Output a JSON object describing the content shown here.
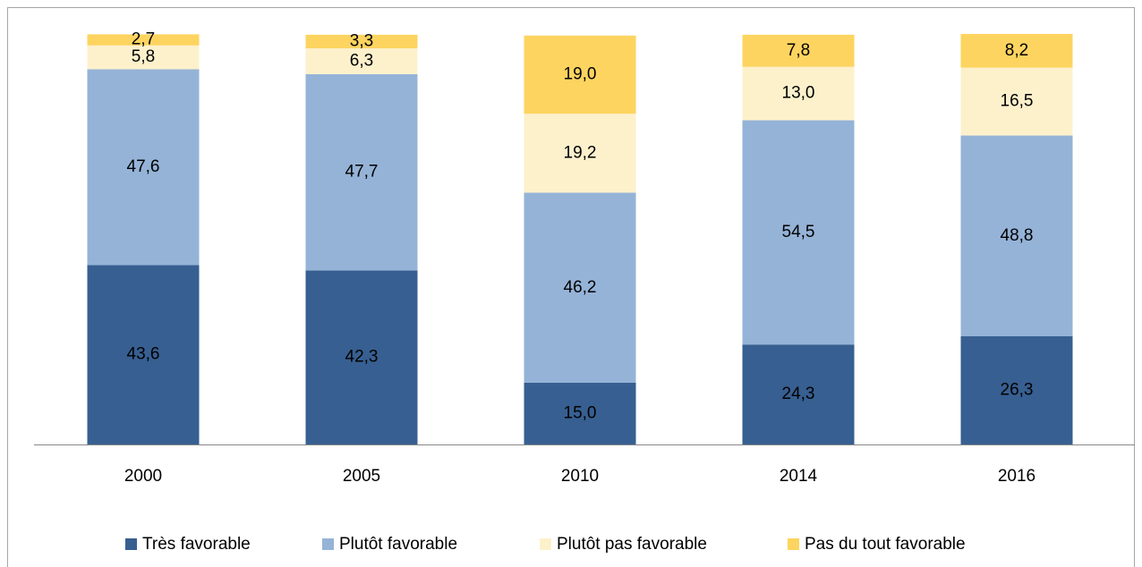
{
  "chart_data": {
    "type": "stacked_bar",
    "categories": [
      "2000",
      "2005",
      "2010",
      "2014",
      "2016"
    ],
    "series": [
      {
        "name": "Très favorable",
        "color": "#375f91",
        "values": [
          43.6,
          42.3,
          15.0,
          24.3,
          26.3
        ],
        "value_labels": [
          "43,6",
          "42,3",
          "15,0",
          "24,3",
          "26,3"
        ]
      },
      {
        "name": "Plutôt favorable",
        "color": "#95b3d7",
        "values": [
          47.6,
          47.7,
          46.2,
          54.5,
          48.8
        ],
        "value_labels": [
          "47,6",
          "47,7",
          "46,2",
          "54,5",
          "48,8"
        ]
      },
      {
        "name": "Plutôt pas favorable",
        "color": "#fdf1cc",
        "values": [
          5.8,
          6.3,
          19.2,
          13.0,
          16.5
        ],
        "value_labels": [
          "5,8",
          "6,3",
          "19,2",
          "13,0",
          "16,5"
        ]
      },
      {
        "name": "Pas du tout favorable",
        "color": "#fdd45f",
        "values": [
          2.7,
          3.3,
          19.0,
          7.8,
          8.2
        ],
        "value_labels": [
          "2,7",
          "3,3",
          "19,0",
          "7,8",
          "8,2"
        ]
      }
    ],
    "ylim": [
      0,
      100
    ],
    "legend": "bottom"
  }
}
